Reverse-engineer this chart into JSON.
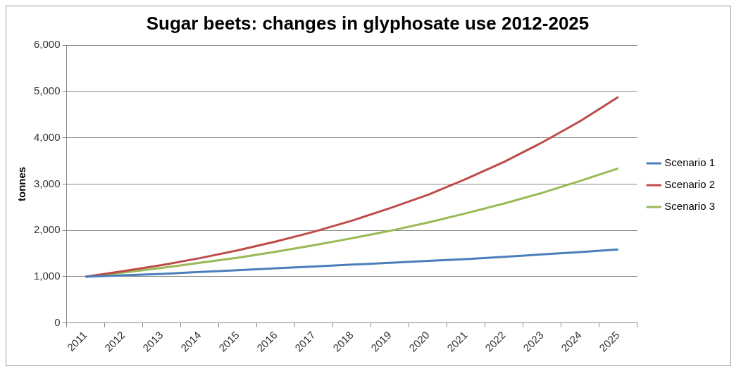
{
  "chart_data": {
    "type": "line",
    "title": "Sugar beets: changes in glyphosate use 2012-2025",
    "ylabel": "tonnes",
    "categories": [
      "2011",
      "2012",
      "2013",
      "2014",
      "2015",
      "2016",
      "2017",
      "2018",
      "2019",
      "2020",
      "2021",
      "2022",
      "2023",
      "2024",
      "2025"
    ],
    "series": [
      {
        "name": "Scenario 1",
        "color": "#4a7ebb",
        "values": [
          1000,
          1030,
          1060,
          1100,
          1140,
          1180,
          1220,
          1260,
          1300,
          1340,
          1380,
          1430,
          1480,
          1530,
          1590
        ]
      },
      {
        "name": "Scenario 2",
        "color": "#be4b48",
        "values": [
          1000,
          1120,
          1250,
          1400,
          1570,
          1760,
          1970,
          2210,
          2480,
          2770,
          3110,
          3480,
          3900,
          4360,
          4880
        ]
      },
      {
        "name": "Scenario 3",
        "color": "#98b954",
        "values": [
          1000,
          1090,
          1190,
          1300,
          1410,
          1540,
          1680,
          1830,
          1990,
          2170,
          2370,
          2580,
          2810,
          3070,
          3340
        ]
      }
    ],
    "ylim": [
      0,
      6000
    ],
    "yticks": [
      {
        "value": 0,
        "label": "0"
      },
      {
        "value": 1000,
        "label": "1,000"
      },
      {
        "value": 2000,
        "label": "2,000"
      },
      {
        "value": 3000,
        "label": "3,000"
      },
      {
        "value": 4000,
        "label": "4,000"
      },
      {
        "value": 5000,
        "label": "5,000"
      },
      {
        "value": 6000,
        "label": "6,000"
      }
    ],
    "grid": "y",
    "legend": "right",
    "marker": "none",
    "line_style": "solid"
  }
}
